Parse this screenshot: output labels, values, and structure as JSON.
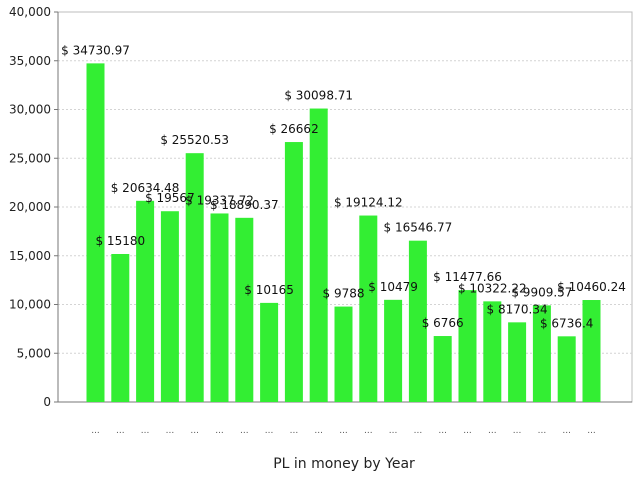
{
  "chart_data": {
    "type": "bar",
    "title": "",
    "xlabel": "PL in money by Year",
    "ylabel": "",
    "ylim": [
      0,
      40000
    ],
    "yticks": [
      "0",
      "5,000",
      "10,000",
      "15,000",
      "20,000",
      "25,000",
      "30,000",
      "35,000",
      "40,000"
    ],
    "grid": true,
    "legend": "none",
    "bar_color": "#33ee33",
    "categories": [
      "...",
      "...",
      "...",
      "...",
      "...",
      "...",
      "...",
      "...",
      "...",
      "...",
      "...",
      "...",
      "...",
      "...",
      "...",
      "...",
      "...",
      "...",
      "...",
      "...",
      "..."
    ],
    "values": [
      34730.97,
      15180,
      20634.48,
      19567,
      25520.53,
      19337.72,
      18890.37,
      10165,
      26662,
      30098.71,
      9788,
      19124.12,
      10479,
      16546.77,
      6766,
      11477.66,
      10322.22,
      8170.34,
      9909.57,
      6736.4,
      10460.24
    ],
    "data_labels": [
      "$ 34730.97",
      "$ 15180",
      "$ 20634.48",
      "$ 19567",
      "$ 25520.53",
      "$ 19337.72",
      "$ 18890.37",
      "$ 10165",
      "$ 26662",
      "$ 30098.71",
      "$ 9788",
      "$ 19124.12",
      "$ 10479",
      "$ 16546.77",
      "$ 6766",
      "$ 11477.66",
      "$ 10322.22",
      "$ 8170.34",
      "$ 9909.57",
      "$ 6736.4",
      "$ 10460.24"
    ]
  }
}
